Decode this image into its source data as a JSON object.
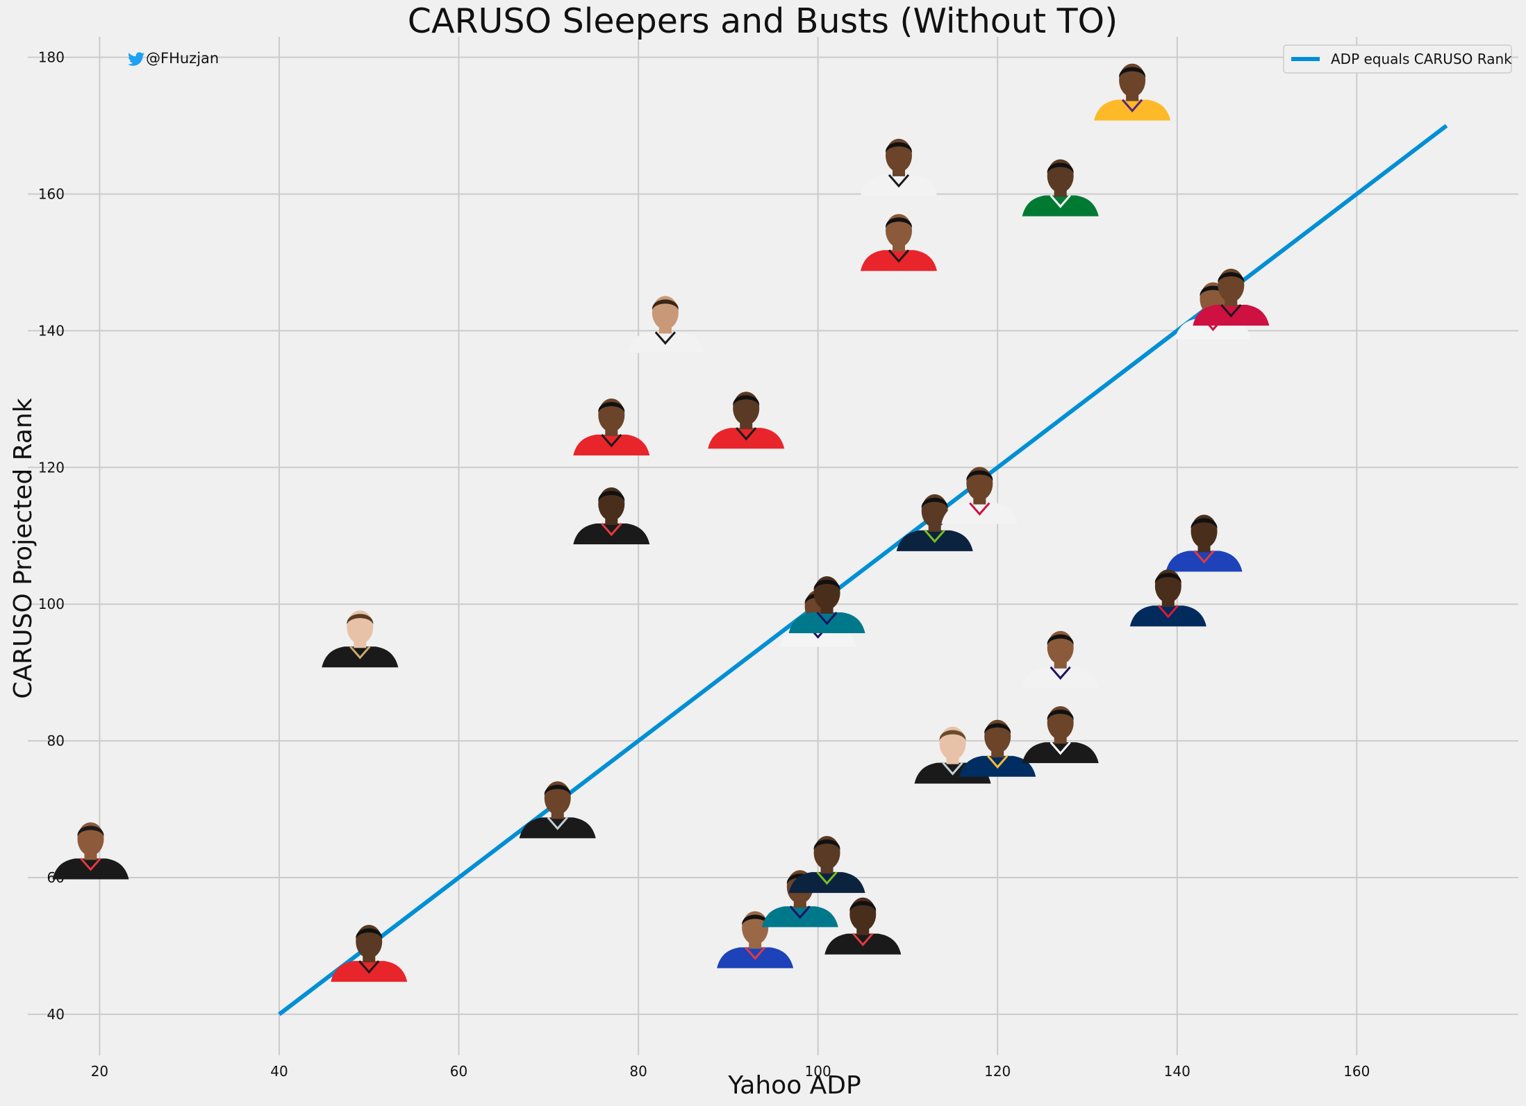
{
  "chart_data": {
    "type": "scatter",
    "title": "CARUSO Sleepers and Busts (Without TO)",
    "xlabel": "Yahoo ADP",
    "ylabel": "CARUSO Projected Rank",
    "xlim": [
      12,
      178
    ],
    "ylim": [
      34,
      183
    ],
    "xticks": [
      "20",
      "40",
      "60",
      "80",
      "100",
      "120",
      "140",
      "160"
    ],
    "yticks": [
      "40",
      "60",
      "80",
      "100",
      "120",
      "140",
      "160",
      "180"
    ],
    "grid": true,
    "legend_position": "top-right",
    "reference_line": {
      "name": "ADP equals CARUSO Rank",
      "x": [
        40,
        170
      ],
      "y": [
        40,
        170
      ],
      "color": "#008fd5"
    },
    "points": [
      {
        "x": 19,
        "y": 63,
        "jersey": "#1a1a1a",
        "trim": "#e03a3e",
        "skin": "#8d5a3b",
        "hair": "#1a1a1a"
      },
      {
        "x": 50,
        "y": 48,
        "jersey": "#e8252a",
        "trim": "#1a1a1a",
        "skin": "#5a3a24",
        "hair": "#111111"
      },
      {
        "x": 49,
        "y": 94,
        "jersey": "#1a1a1a",
        "trim": "#c8aa6e",
        "skin": "#e8c2a8",
        "hair": "#5a3a22"
      },
      {
        "x": 71,
        "y": 69,
        "jersey": "#1a1a1a",
        "trim": "#c4ced4",
        "skin": "#6b4429",
        "hair": "#111111"
      },
      {
        "x": 77,
        "y": 112,
        "jersey": "#1a1a1a",
        "trim": "#e03a3e",
        "skin": "#4a2e1c",
        "hair": "#111111"
      },
      {
        "x": 77,
        "y": 125,
        "jersey": "#e8252a",
        "trim": "#1a1a1a",
        "skin": "#6b4429",
        "hair": "#111111"
      },
      {
        "x": 92,
        "y": 126,
        "jersey": "#e8252a",
        "trim": "#1a1a1a",
        "skin": "#5a3a24",
        "hair": "#111111"
      },
      {
        "x": 83,
        "y": 140,
        "jersey": "#f2f2f2",
        "trim": "#1a1a1a",
        "skin": "#c99878",
        "hair": "#3a2616"
      },
      {
        "x": 100,
        "y": 97,
        "jersey": "#f4f4f4",
        "trim": "#1d1160",
        "skin": "#6b4429",
        "hair": "#111111"
      },
      {
        "x": 101,
        "y": 99,
        "jersey": "#00788c",
        "trim": "#1d1160",
        "skin": "#4a2e1c",
        "hair": "#111111"
      },
      {
        "x": 93,
        "y": 50,
        "jersey": "#1d42ba",
        "trim": "#e03a3e",
        "skin": "#9a6847",
        "hair": "#111111"
      },
      {
        "x": 98,
        "y": 56,
        "jersey": "#00788c",
        "trim": "#1d1160",
        "skin": "#6b4429",
        "hair": "#111111"
      },
      {
        "x": 101,
        "y": 61,
        "jersey": "#0c2340",
        "trim": "#78be20",
        "skin": "#5a3a24",
        "hair": "#111111"
      },
      {
        "x": 105,
        "y": 52,
        "jersey": "#1a1a1a",
        "trim": "#e03a3e",
        "skin": "#4a2e1c",
        "hair": "#111111"
      },
      {
        "x": 109,
        "y": 163,
        "jersey": "#f2f2f2",
        "trim": "#1a1a1a",
        "skin": "#6b4429",
        "hair": "#111111"
      },
      {
        "x": 109,
        "y": 152,
        "jersey": "#e8252a",
        "trim": "#1a1a1a",
        "skin": "#8a5a3a",
        "hair": "#111111"
      },
      {
        "x": 113,
        "y": 111,
        "jersey": "#0c2340",
        "trim": "#78be20",
        "skin": "#5a3a24",
        "hair": "#111111"
      },
      {
        "x": 118,
        "y": 115,
        "jersey": "#f2f2f2",
        "trim": "#ce1141",
        "skin": "#6b4429",
        "hair": "#111111"
      },
      {
        "x": 115,
        "y": 77,
        "jersey": "#1a1a1a",
        "trim": "#c4ced4",
        "skin": "#e8c2a8",
        "hair": "#6b4a2a"
      },
      {
        "x": 120,
        "y": 78,
        "jersey": "#002d62",
        "trim": "#fdbb30",
        "skin": "#6b4429",
        "hair": "#111111"
      },
      {
        "x": 127,
        "y": 80,
        "jersey": "#1a1a1a",
        "trim": "#ffffff",
        "skin": "#6b4429",
        "hair": "#111111"
      },
      {
        "x": 127,
        "y": 91,
        "jersey": "#f2f2f2",
        "trim": "#1d1160",
        "skin": "#8a5a3a",
        "hair": "#111111"
      },
      {
        "x": 127,
        "y": 160,
        "jersey": "#007a33",
        "trim": "#ffffff",
        "skin": "#5a3a24",
        "hair": "#111111"
      },
      {
        "x": 135,
        "y": 174,
        "jersey": "#fdb927",
        "trim": "#552583",
        "skin": "#6b4429",
        "hair": "#111111"
      },
      {
        "x": 143,
        "y": 108,
        "jersey": "#1d42ba",
        "trim": "#e03a3e",
        "skin": "#4a2e1c",
        "hair": "#111111"
      },
      {
        "x": 139,
        "y": 100,
        "jersey": "#002b5c",
        "trim": "#e31837",
        "skin": "#4a2e1c",
        "hair": "#111111"
      },
      {
        "x": 144,
        "y": 142,
        "jersey": "#f4f4f4",
        "trim": "#ce1141",
        "skin": "#8a5a3a",
        "hair": "#111111"
      },
      {
        "x": 146,
        "y": 144,
        "jersey": "#ce1141",
        "trim": "#1a1a1a",
        "skin": "#6b4429",
        "hair": "#111111"
      }
    ]
  },
  "handle": {
    "icon": "twitter-bird-icon",
    "text": "@FHuzjan",
    "color": "#1da1f2"
  },
  "legend": {
    "label": "ADP equals CARUSO Rank"
  }
}
